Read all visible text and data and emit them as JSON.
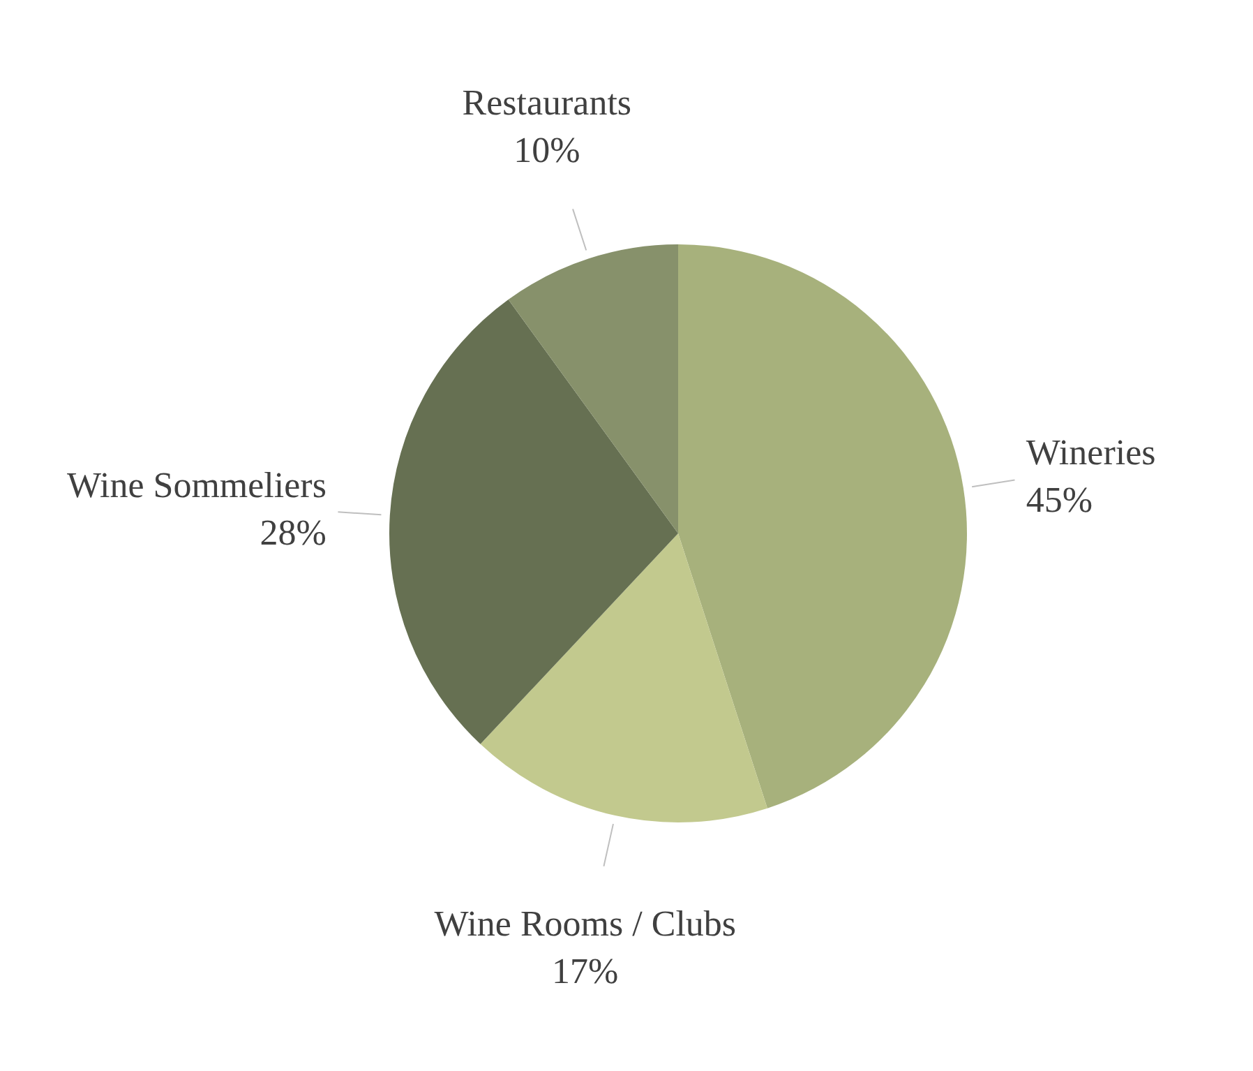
{
  "chart_data": {
    "type": "pie",
    "categories": [
      "Wineries",
      "Wine Rooms / Clubs",
      "Wine Sommeliers",
      "Restaurants"
    ],
    "values": [
      45,
      17,
      28,
      10
    ],
    "value_labels": [
      "45%",
      "17%",
      "28%",
      "10%"
    ],
    "colors": [
      "#a7b17c",
      "#c2c98e",
      "#667052",
      "#87916b"
    ],
    "legend": false
  }
}
